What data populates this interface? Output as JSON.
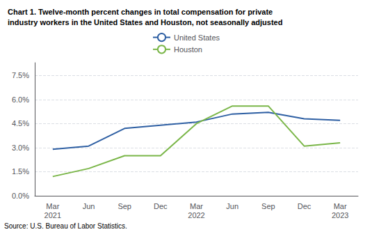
{
  "chart_data": {
    "type": "line",
    "title": "Chart 1. Twelve-month percent changes in total compensation for private\nindustry workers in the United States and Houston, not seasonally adjusted",
    "annotations": [
      "Source: U.S. Bureau of Labor Statistics."
    ],
    "categories": [
      "Mar\n2021",
      "Jun",
      "Sep",
      "Dec",
      "Mar\n2022",
      "Jun",
      "Sep",
      "Dec",
      "Mar\n2023"
    ],
    "series": [
      {
        "name": "United States",
        "color": "#2E5FA3",
        "values": [
          2.9,
          3.1,
          4.2,
          4.4,
          4.6,
          5.1,
          5.2,
          4.8,
          4.7
        ]
      },
      {
        "name": "Houston",
        "color": "#7AB648",
        "values": [
          1.2,
          1.7,
          2.5,
          2.5,
          4.5,
          5.6,
          5.6,
          3.1,
          3.3
        ]
      }
    ],
    "ylim": [
      0.0,
      8.3
    ],
    "yticks": [
      {
        "value": 0.0,
        "label": "0.0%"
      },
      {
        "value": 1.5,
        "label": "1.5%"
      },
      {
        "value": 3.0,
        "label": "3.0%"
      },
      {
        "value": 4.5,
        "label": "4.5%"
      },
      {
        "value": 6.0,
        "label": "6.0%"
      },
      {
        "value": 7.5,
        "label": "7.5%"
      }
    ],
    "grid": true,
    "legend": "top"
  }
}
